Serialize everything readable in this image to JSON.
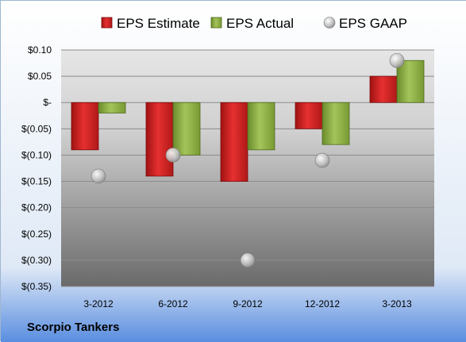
{
  "chart_data": {
    "type": "bar",
    "categories": [
      "3-2012",
      "6-2012",
      "9-2012",
      "12-2012",
      "3-2013"
    ],
    "series": [
      {
        "name": "EPS Estimate",
        "kind": "bar",
        "color": "#d42020",
        "values": [
          -0.09,
          -0.14,
          -0.15,
          -0.05,
          0.05
        ]
      },
      {
        "name": "EPS Actual",
        "kind": "bar",
        "color": "#8cb040",
        "values": [
          -0.02,
          -0.1,
          -0.09,
          -0.08,
          0.08
        ]
      },
      {
        "name": "EPS GAAP",
        "kind": "scatter",
        "color": "#b8b8b8",
        "values": [
          -0.14,
          -0.1,
          -0.3,
          -0.11,
          0.08
        ]
      }
    ],
    "ylim": [
      -0.35,
      0.1
    ],
    "yticks": [
      0.1,
      0.05,
      0.0,
      -0.05,
      -0.1,
      -0.15,
      -0.2,
      -0.25,
      -0.3,
      -0.35
    ],
    "ytick_labels": [
      "$0.10",
      "$0.05",
      "$-",
      "$(0.05)",
      "$(0.10)",
      "$(0.15)",
      "$(0.20)",
      "$(0.25)",
      "$(0.30)",
      "$(0.35)"
    ],
    "grid": true,
    "legend": "top"
  },
  "company": "Scorpio Tankers"
}
